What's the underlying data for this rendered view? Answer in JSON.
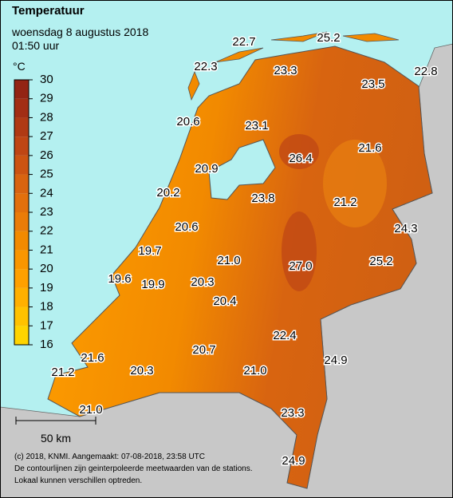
{
  "header": {
    "title": "Temperatuur",
    "date": "woensdag 8 augustus 2018",
    "time": "01:50 uur"
  },
  "colorbar": {
    "unit": "°C",
    "ticks": [
      16,
      17,
      18,
      19,
      20,
      21,
      22,
      23,
      24,
      25,
      26,
      27,
      28,
      29,
      30
    ],
    "colors": [
      "#ffd400",
      "#ffc200",
      "#ffb000",
      "#ffa000",
      "#f99600",
      "#f28a00",
      "#ea7c08",
      "#e2700c",
      "#d86410",
      "#cc5412",
      "#bf4614",
      "#b03a14",
      "#a22e14",
      "#932414"
    ]
  },
  "stations": [
    "22.7",
    "25.2",
    "22.3",
    "23.3",
    "23.5",
    "22.8",
    "20.6",
    "23.1",
    "26.4",
    "21.6",
    "20.9",
    "20.2",
    "23.8",
    "21.2",
    "24.3",
    "20.6",
    "19.7",
    "21.0",
    "27.0",
    "25.2",
    "19.6",
    "19.9",
    "20.3",
    "20.4",
    "22.4",
    "24.9",
    "21.6",
    "20.7",
    "21.0",
    "21.2",
    "20.3",
    "21.0",
    "23.3",
    "24.9"
  ],
  "scale": "50 km",
  "footer": [
    "(c) 2018, KNMI. Aangemaakt: 07-08-2018, 23:58 UTC",
    "De contourlijnen zijn geinterpoleerde meetwaarden van de stations.",
    "Lokaal kunnen verschillen optreden."
  ]
}
